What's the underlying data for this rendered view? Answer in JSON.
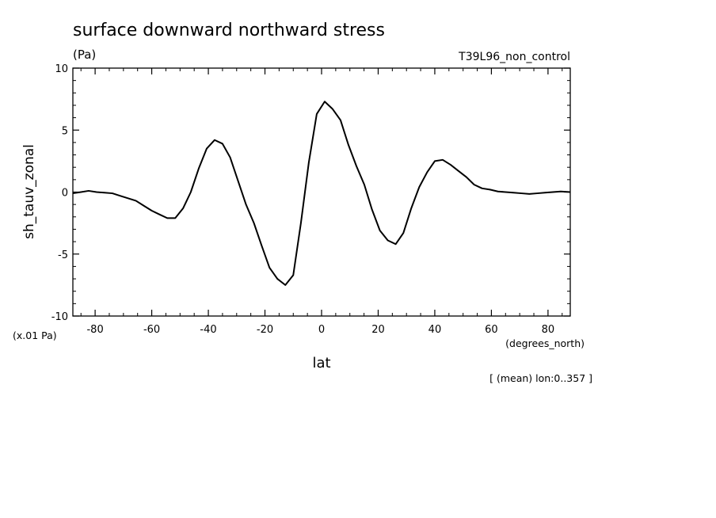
{
  "chart_data": {
    "type": "line",
    "title": "surface downward northward stress",
    "units_label": "(Pa)",
    "dataset_label": "T39L96_non_control",
    "ylabel": "sh_tauv_zonal",
    "scale_label": "(x.01 Pa)",
    "xlabel": "lat",
    "x_units_label": "(degrees_north)",
    "footer_note": "[ (mean) lon:0..357 ]",
    "xlim": [
      -87.8638,
      87.8638
    ],
    "ylim": [
      -10,
      10
    ],
    "x_ticks": [
      -80,
      -60,
      -40,
      -20,
      0,
      20,
      40,
      60,
      80
    ],
    "x_tick_labels": [
      "-80",
      "-60",
      "-40",
      "-20",
      "0",
      "20",
      "40",
      "60",
      "80"
    ],
    "y_ticks": [
      -10,
      -5,
      0,
      5,
      10
    ],
    "y_tick_labels": [
      "-10",
      "-5",
      "0",
      "5",
      "10"
    ],
    "grid": false,
    "line_color": "#000000",
    "series": [
      {
        "x": [
          -87.86,
          -85,
          -82.3,
          -79.5,
          -76.7,
          -73.9,
          -71.2,
          -68.4,
          -65.6,
          -62.8,
          -60.0,
          -57.3,
          -54.5,
          -51.7,
          -48.9,
          -46.2,
          -43.4,
          -40.6,
          -37.8,
          -35.0,
          -32.3,
          -29.5,
          -26.7,
          -23.9,
          -21.2,
          -18.4,
          -15.6,
          -12.8,
          -10.0,
          -7.3,
          -4.5,
          -1.7,
          1.1,
          3.9,
          6.7,
          9.5,
          12.3,
          15.1,
          17.8,
          20.6,
          23.4,
          26.2,
          28.9,
          31.7,
          34.5,
          37.3,
          40.0,
          42.8,
          45.6,
          48.4,
          51.2,
          53.9,
          56.7,
          59.5,
          62.3,
          65.0,
          67.8,
          70.6,
          73.4,
          76.2,
          78.9,
          81.7,
          84.5,
          87.86
        ],
        "y": [
          -0.1,
          0.0,
          0.1,
          0.0,
          -0.05,
          -0.1,
          -0.3,
          -0.5,
          -0.7,
          -1.1,
          -1.5,
          -1.8,
          -2.1,
          -2.1,
          -1.3,
          0.0,
          1.9,
          3.5,
          4.2,
          3.9,
          2.8,
          0.9,
          -1.0,
          -2.5,
          -4.3,
          -6.1,
          -7.0,
          -7.5,
          -6.7,
          -2.5,
          2.4,
          6.3,
          7.3,
          6.7,
          5.8,
          3.8,
          2.1,
          0.6,
          -1.4,
          -3.1,
          -3.9,
          -4.2,
          -3.3,
          -1.3,
          0.4,
          1.6,
          2.5,
          2.6,
          2.2,
          1.7,
          1.2,
          0.6,
          0.3,
          0.2,
          0.05,
          0.0,
          -0.05,
          -0.1,
          -0.15,
          -0.1,
          -0.05,
          0.0,
          0.05,
          0.0
        ]
      }
    ]
  }
}
